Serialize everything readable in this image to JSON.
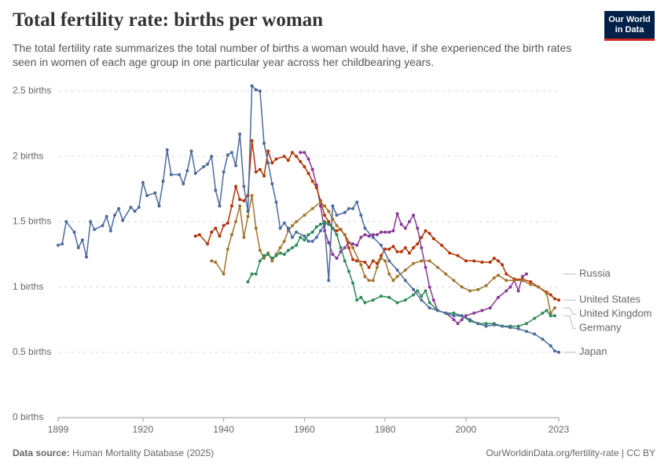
{
  "chart_data": {
    "type": "line",
    "title": "Total fertility rate: births per woman",
    "subtitle": "The total fertility rate summarizes the total number of births a woman would have, if she experienced the birth rates seen in women of each age group in one particular year across her childbearing years.",
    "logo": "Our World in Data",
    "source_label": "Data source:",
    "source": "Human Mortality Database (2025)",
    "footer_right": "OurWorldinData.org/fertility-rate | CC BY",
    "xlim": [
      1899,
      2023
    ],
    "xticks": [
      1899,
      1920,
      1940,
      1960,
      1980,
      2000,
      2023
    ],
    "ylim": [
      0,
      2.5
    ],
    "yticks": [
      {
        "value": 0,
        "label": "0 births"
      },
      {
        "value": 0.5,
        "label": "0.5 births"
      },
      {
        "value": 1,
        "label": "1 births"
      },
      {
        "value": 1.5,
        "label": "1.5 births"
      },
      {
        "value": 2,
        "label": "2 births"
      },
      {
        "value": 2.5,
        "label": "2.5 births"
      }
    ],
    "grid": true,
    "series": [
      {
        "name": "Russia",
        "color": "#883996",
        "x": [
          1959,
          1960,
          1961,
          1962,
          1963,
          1964,
          1965,
          1966,
          1967,
          1968,
          1969,
          1970,
          1971,
          1972,
          1973,
          1974,
          1975,
          1976,
          1977,
          1978,
          1979,
          1980,
          1981,
          1982,
          1983,
          1984,
          1985,
          1986,
          1987,
          1988,
          1989,
          1990,
          1991,
          1992,
          1993,
          1995,
          1997,
          1998,
          1999,
          2000,
          2002,
          2004,
          2006,
          2008,
          2010,
          2011,
          2012,
          2013,
          2014,
          2015
        ],
        "values": [
          2.03,
          2.03,
          1.98,
          1.9,
          1.78,
          1.62,
          1.43,
          1.34,
          1.25,
          1.22,
          1.27,
          1.3,
          1.34,
          1.33,
          1.32,
          1.38,
          1.4,
          1.39,
          1.4,
          1.4,
          1.42,
          1.42,
          1.42,
          1.43,
          1.56,
          1.48,
          1.45,
          1.5,
          1.55,
          1.45,
          1.3,
          1.15,
          1.0,
          0.9,
          0.82,
          0.8,
          0.75,
          0.72,
          0.75,
          0.78,
          0.8,
          0.82,
          0.84,
          0.92,
          0.97,
          1.0,
          1.05,
          0.97,
          1.08,
          1.1
        ]
      },
      {
        "name": "United States",
        "color": "#b13507",
        "x": [
          1933,
          1934,
          1936,
          1937,
          1938,
          1939,
          1940,
          1941,
          1942,
          1943,
          1944,
          1945,
          1946,
          1947,
          1948,
          1949,
          1950,
          1951,
          1952,
          1953,
          1955,
          1956,
          1957,
          1958,
          1959,
          1960,
          1961,
          1962,
          1963,
          1964,
          1965,
          1966,
          1967,
          1968,
          1969,
          1970,
          1971,
          1972,
          1973,
          1975,
          1976,
          1977,
          1978,
          1979,
          1980,
          1981,
          1982,
          1983,
          1984,
          1985,
          1986,
          1987,
          1988,
          1989,
          1990,
          1991,
          1992,
          1994,
          1996,
          1998,
          2000,
          2002,
          2004,
          2006,
          2007,
          2008,
          2009,
          2010,
          2012,
          2014,
          2016,
          2018,
          2020,
          2021,
          2022,
          2023
        ],
        "values": [
          1.39,
          1.4,
          1.33,
          1.42,
          1.45,
          1.39,
          1.47,
          1.49,
          1.62,
          1.77,
          1.67,
          1.66,
          1.7,
          2.12,
          1.88,
          1.9,
          1.85,
          2.04,
          1.95,
          1.98,
          2.0,
          1.97,
          2.03,
          2.0,
          1.96,
          1.92,
          1.87,
          1.81,
          1.76,
          1.66,
          1.55,
          1.5,
          1.45,
          1.43,
          1.44,
          1.4,
          1.3,
          1.21,
          1.2,
          1.19,
          1.15,
          1.2,
          1.18,
          1.24,
          1.29,
          1.29,
          1.31,
          1.27,
          1.27,
          1.3,
          1.26,
          1.3,
          1.33,
          1.38,
          1.43,
          1.41,
          1.37,
          1.32,
          1.26,
          1.24,
          1.2,
          1.2,
          1.19,
          1.19,
          1.22,
          1.2,
          1.17,
          1.1,
          1.06,
          1.06,
          1.04,
          1.0,
          0.96,
          0.94,
          0.91,
          0.9
        ]
      },
      {
        "name": "United Kingdom",
        "color": "#a2742f",
        "x": [
          1937,
          1938,
          1940,
          1941,
          1942,
          1943,
          1944,
          1945,
          1946,
          1947,
          1948,
          1949,
          1950,
          1951,
          1952,
          1953,
          1954,
          1955,
          1956,
          1957,
          1958,
          1960,
          1962,
          1964,
          1965,
          1966,
          1967,
          1968,
          1970,
          1972,
          1974,
          1975,
          1976,
          1977,
          1978,
          1979,
          1980,
          1981,
          1982,
          1983,
          1985,
          1987,
          1989,
          1991,
          1993,
          1995,
          1997,
          1999,
          2001,
          2003,
          2005,
          2007,
          2008,
          2010,
          2012,
          2014,
          2016,
          2018,
          2020,
          2021,
          2022
        ],
        "values": [
          1.2,
          1.19,
          1.1,
          1.29,
          1.4,
          1.5,
          1.62,
          1.38,
          1.54,
          1.7,
          1.45,
          1.28,
          1.22,
          1.26,
          1.2,
          1.25,
          1.3,
          1.35,
          1.43,
          1.47,
          1.5,
          1.55,
          1.6,
          1.65,
          1.62,
          1.58,
          1.52,
          1.47,
          1.4,
          1.3,
          1.17,
          1.08,
          1.05,
          1.05,
          1.15,
          1.22,
          1.2,
          1.1,
          1.05,
          1.08,
          1.13,
          1.18,
          1.2,
          1.2,
          1.15,
          1.1,
          1.05,
          1.0,
          0.97,
          0.98,
          1.01,
          1.07,
          1.09,
          1.05,
          1.05,
          1.05,
          1.02,
          1.0,
          0.95,
          0.8,
          0.84
        ]
      },
      {
        "name": "Germany",
        "color": "#2e8b57",
        "x": [
          1946,
          1947,
          1948,
          1949,
          1950,
          1951,
          1952,
          1953,
          1954,
          1955,
          1956,
          1957,
          1958,
          1959,
          1960,
          1961,
          1962,
          1963,
          1964,
          1965,
          1966,
          1967,
          1968,
          1969,
          1970,
          1971,
          1972,
          1973,
          1974,
          1975,
          1977,
          1979,
          1981,
          1983,
          1985,
          1987,
          1988,
          1989,
          1990,
          1991,
          1993,
          1995,
          1997,
          1999,
          2001,
          2003,
          2005,
          2007,
          2009,
          2011,
          2013,
          2015,
          2017,
          2019,
          2020,
          2021,
          2022
        ],
        "values": [
          1.04,
          1.1,
          1.1,
          1.2,
          1.24,
          1.25,
          1.22,
          1.24,
          1.26,
          1.25,
          1.28,
          1.3,
          1.32,
          1.38,
          1.36,
          1.4,
          1.42,
          1.46,
          1.48,
          1.5,
          1.48,
          1.45,
          1.4,
          1.3,
          1.2,
          1.12,
          1.03,
          0.9,
          0.92,
          0.88,
          0.9,
          0.93,
          0.92,
          0.88,
          0.9,
          0.94,
          0.97,
          0.93,
          0.97,
          0.88,
          0.82,
          0.8,
          0.8,
          0.78,
          0.74,
          0.72,
          0.72,
          0.72,
          0.7,
          0.7,
          0.7,
          0.72,
          0.76,
          0.8,
          0.82,
          0.78,
          0.78
        ]
      },
      {
        "name": "Japan",
        "color": "#4c6a9c",
        "x": [
          1899,
          1900,
          1901,
          1903,
          1904,
          1905,
          1906,
          1907,
          1908,
          1910,
          1911,
          1912,
          1913,
          1914,
          1915,
          1917,
          1918,
          1919,
          1920,
          1921,
          1923,
          1924,
          1925,
          1926,
          1927,
          1929,
          1930,
          1931,
          1932,
          1933,
          1935,
          1936,
          1937,
          1938,
          1939,
          1940,
          1941,
          1942,
          1943,
          1944,
          1945,
          1946,
          1947,
          1948,
          1949,
          1950,
          1951,
          1952,
          1953,
          1954,
          1955,
          1956,
          1957,
          1958,
          1960,
          1961,
          1962,
          1963,
          1964,
          1965,
          1966,
          1967,
          1968,
          1970,
          1971,
          1972,
          1973,
          1974,
          1975,
          1977,
          1979,
          1981,
          1983,
          1985,
          1987,
          1989,
          1991,
          1993,
          1995,
          1997,
          1999,
          2001,
          2003,
          2005,
          2007,
          2009,
          2011,
          2013,
          2015,
          2017,
          2019,
          2021,
          2022,
          2023
        ],
        "values": [
          1.32,
          1.33,
          1.5,
          1.42,
          1.3,
          1.36,
          1.23,
          1.5,
          1.44,
          1.47,
          1.54,
          1.43,
          1.55,
          1.6,
          1.51,
          1.61,
          1.58,
          1.61,
          1.8,
          1.7,
          1.72,
          1.62,
          1.81,
          2.05,
          1.86,
          1.86,
          1.79,
          1.89,
          2.04,
          1.87,
          1.92,
          1.94,
          2.0,
          1.74,
          1.62,
          1.88,
          2.01,
          2.03,
          1.93,
          2.17,
          1.77,
          1.58,
          2.54,
          2.51,
          2.5,
          2.1,
          1.95,
          1.79,
          1.65,
          1.45,
          1.49,
          1.45,
          1.38,
          1.42,
          1.39,
          1.35,
          1.35,
          1.38,
          1.43,
          1.48,
          1.05,
          1.62,
          1.55,
          1.57,
          1.6,
          1.6,
          1.65,
          1.55,
          1.45,
          1.38,
          1.32,
          1.2,
          1.13,
          1.05,
          0.98,
          0.9,
          0.84,
          0.82,
          0.8,
          0.78,
          0.78,
          0.75,
          0.72,
          0.7,
          0.71,
          0.7,
          0.69,
          0.68,
          0.66,
          0.64,
          0.6,
          0.55,
          0.51,
          0.5
        ]
      }
    ]
  }
}
